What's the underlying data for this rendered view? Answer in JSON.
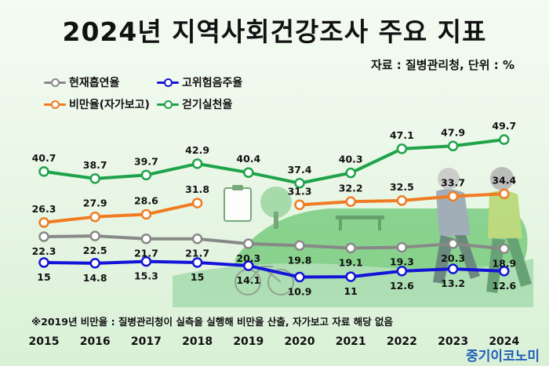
{
  "title": "2024년 지역사회건강조사 주요 지표",
  "source": "자료 : 질병관리청, 단위 : %",
  "note": "※2019년 비만율 : 질병관리청이 실측을 실행해 비만율 산출, 자가보고 자료 해당 없음",
  "brand": "중기이코노미",
  "legend": {
    "smoking": "현재흡연율",
    "drinking": "고위험음주율",
    "obesity": "비만율(자가보고)",
    "walking": "걷기실천율"
  },
  "chart_data": {
    "type": "line",
    "x": [
      "2015",
      "2016",
      "2017",
      "2018",
      "2019",
      "2020",
      "2021",
      "2022",
      "2023",
      "2024"
    ],
    "unit": "%",
    "series": [
      {
        "key": "walking",
        "name": "걷기실천율",
        "color": "#1ea34a",
        "values": [
          40.7,
          38.7,
          39.7,
          42.9,
          40.4,
          37.4,
          40.3,
          47.1,
          47.9,
          49.7
        ]
      },
      {
        "key": "obesity",
        "name": "비만율(자가보고)",
        "color": "#f07b22",
        "values": [
          26.3,
          27.9,
          28.6,
          31.8,
          null,
          31.3,
          32.2,
          32.5,
          33.7,
          34.4
        ]
      },
      {
        "key": "smoking",
        "name": "현재흡연율",
        "color": "#888888",
        "values": [
          22.3,
          22.5,
          21.7,
          21.7,
          20.3,
          19.8,
          19.1,
          19.3,
          20.3,
          18.9
        ]
      },
      {
        "key": "drinking",
        "name": "고위험음주율",
        "color": "#1414d8",
        "values": [
          15,
          14.8,
          15.3,
          15,
          14.1,
          10.9,
          11,
          12.6,
          13.2,
          12.6
        ]
      }
    ]
  }
}
